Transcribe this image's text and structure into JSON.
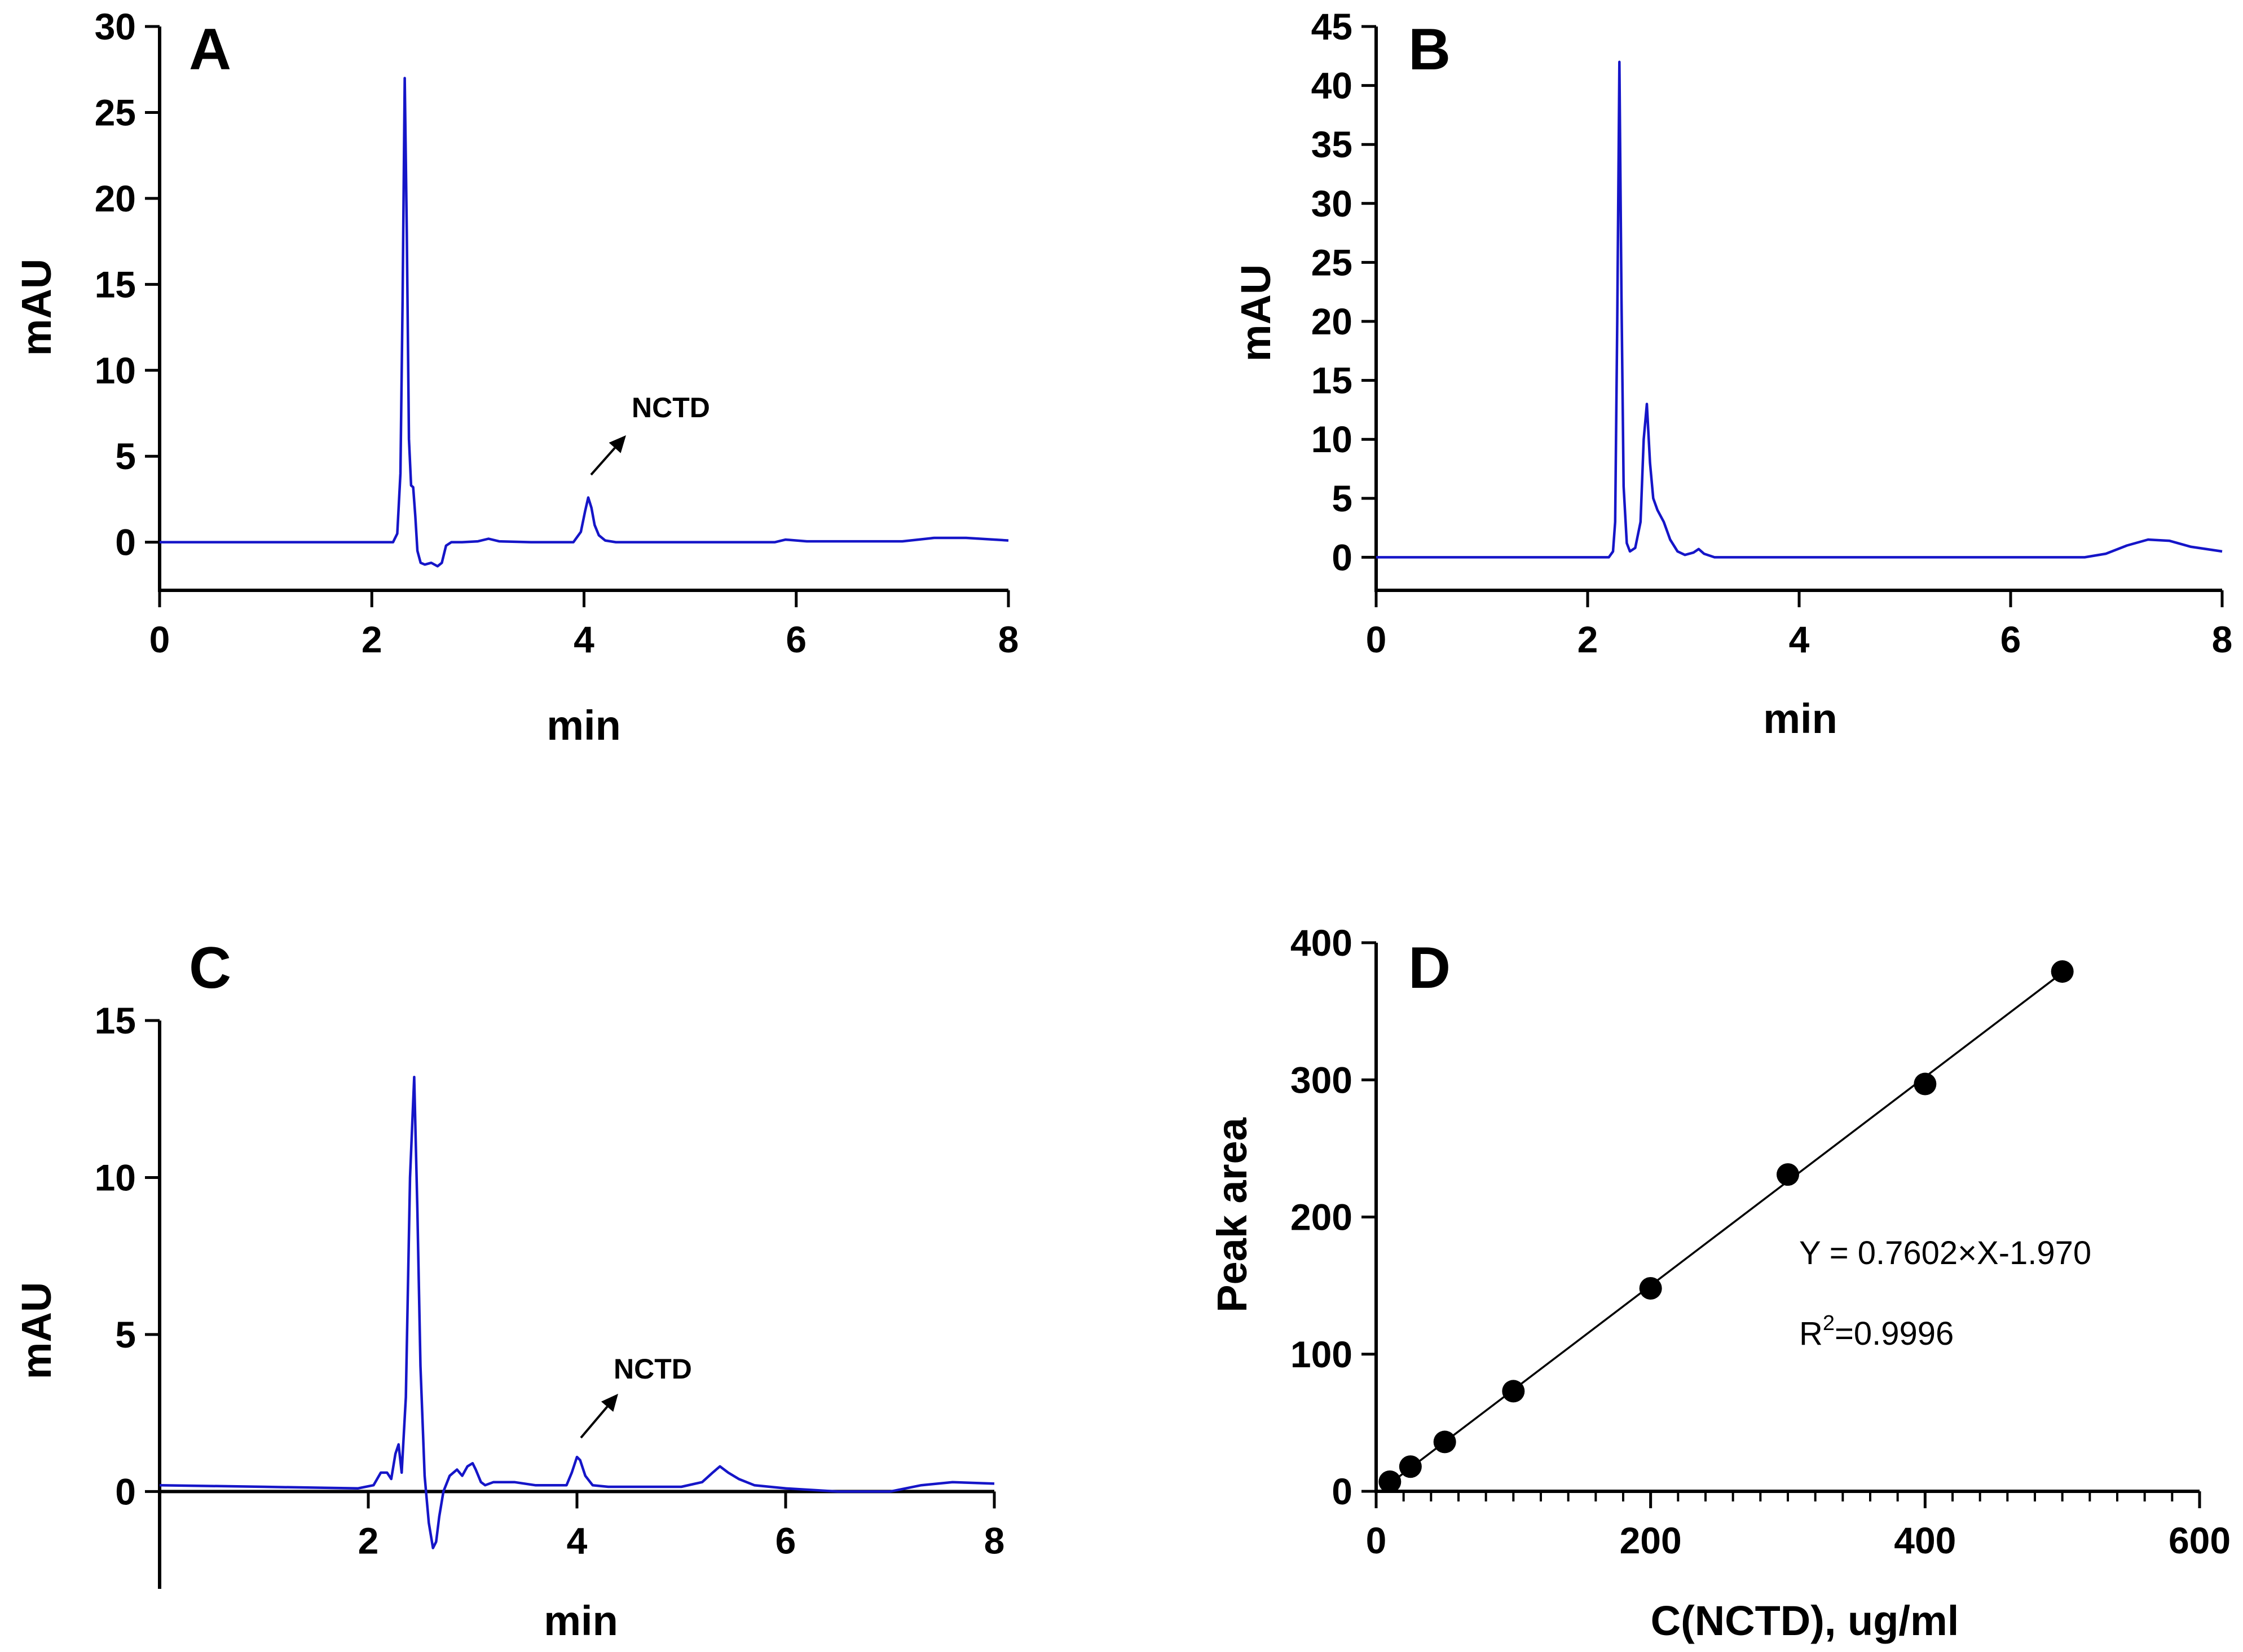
{
  "chart_data": [
    {
      "id": "A",
      "type": "line",
      "panel_label": "A",
      "xlabel": "min",
      "ylabel": "mAU",
      "xlim": [
        0,
        8
      ],
      "ylim": [
        -2.8,
        30
      ],
      "xticks": [
        0,
        2,
        4,
        6,
        8
      ],
      "yticks": [
        0,
        5,
        10,
        15,
        20,
        25,
        30
      ],
      "line_color": "#1515c8",
      "annotation": {
        "text": "NCTD",
        "x": 4.05,
        "y": 2.6
      },
      "series": [
        {
          "name": "chromatogram",
          "x": [
            0,
            1.0,
            2.0,
            2.2,
            2.24,
            2.27,
            2.29,
            2.31,
            2.33,
            2.35,
            2.37,
            2.39,
            2.41,
            2.43,
            2.46,
            2.5,
            2.56,
            2.62,
            2.66,
            2.7,
            2.75,
            2.85,
            3.0,
            3.1,
            3.2,
            3.5,
            3.9,
            3.97,
            4.01,
            4.04,
            4.07,
            4.1,
            4.14,
            4.2,
            4.3,
            5.0,
            5.8,
            5.9,
            6.1,
            7.0,
            7.3,
            7.6,
            8.0
          ],
          "y": [
            0,
            0,
            0,
            0,
            0.5,
            4,
            14,
            27,
            18,
            6,
            3.3,
            3.2,
            1.5,
            -0.5,
            -1.2,
            -1.3,
            -1.2,
            -1.4,
            -1.2,
            -0.2,
            0,
            0,
            0.05,
            0.2,
            0.05,
            0,
            0,
            0.6,
            1.8,
            2.6,
            2.0,
            1.0,
            0.4,
            0.1,
            0,
            0,
            0,
            0.15,
            0.05,
            0.05,
            0.25,
            0.25,
            0.1
          ]
        }
      ]
    },
    {
      "id": "B",
      "type": "line",
      "panel_label": "B",
      "xlabel": "min",
      "ylabel": "mAU",
      "xlim": [
        0,
        8
      ],
      "ylim": [
        -2.8,
        45
      ],
      "xticks": [
        0,
        2,
        4,
        6,
        8
      ],
      "yticks": [
        0,
        5,
        10,
        15,
        20,
        25,
        30,
        35,
        40,
        45
      ],
      "line_color": "#1515c8",
      "series": [
        {
          "name": "chromatogram",
          "x": [
            0,
            1.0,
            2.0,
            2.2,
            2.24,
            2.26,
            2.28,
            2.3,
            2.32,
            2.34,
            2.37,
            2.4,
            2.45,
            2.5,
            2.53,
            2.56,
            2.59,
            2.62,
            2.66,
            2.72,
            2.78,
            2.85,
            2.92,
            3.0,
            3.05,
            3.1,
            3.2,
            3.5,
            4.0,
            5.0,
            6.0,
            6.7,
            6.9,
            7.1,
            7.3,
            7.5,
            7.7,
            8.0
          ],
          "y": [
            0,
            0,
            0,
            0,
            0.5,
            3,
            20,
            42,
            22,
            6,
            1.2,
            0.5,
            0.8,
            3,
            10,
            13,
            8,
            5,
            4,
            3,
            1.5,
            0.5,
            0.2,
            0.4,
            0.7,
            0.3,
            0,
            0,
            0,
            0,
            0,
            0,
            0.3,
            1.0,
            1.5,
            1.4,
            0.9,
            0.5
          ]
        }
      ]
    },
    {
      "id": "C",
      "type": "line",
      "panel_label": "C",
      "xlabel": "min",
      "ylabel": "mAU",
      "xlim": [
        0,
        8
      ],
      "ylim": [
        -3.1,
        15
      ],
      "xticks": [
        2,
        4,
        6,
        8
      ],
      "yticks": [
        0,
        5,
        10,
        15
      ],
      "line_color": "#1515c8",
      "annotation": {
        "text": "NCTD",
        "x": 4.0,
        "y": 1.1
      },
      "series": [
        {
          "name": "chromatogram",
          "x": [
            0,
            1.0,
            1.9,
            2.05,
            2.12,
            2.18,
            2.22,
            2.26,
            2.29,
            2.32,
            2.36,
            2.4,
            2.44,
            2.47,
            2.5,
            2.54,
            2.58,
            2.62,
            2.65,
            2.68,
            2.72,
            2.78,
            2.85,
            2.9,
            2.95,
            3.0,
            3.03,
            3.08,
            3.12,
            3.2,
            3.4,
            3.6,
            3.9,
            3.95,
            4.0,
            4.03,
            4.08,
            4.15,
            4.3,
            5.0,
            5.2,
            5.3,
            5.37,
            5.45,
            5.55,
            5.7,
            6.0,
            6.5,
            7.0,
            7.3,
            7.6,
            8.0
          ],
          "y": [
            0.2,
            0.15,
            0.1,
            0.2,
            0.6,
            0.6,
            0.4,
            1.2,
            1.5,
            0.6,
            3,
            10,
            13.2,
            9,
            4,
            0.5,
            -1,
            -1.8,
            -1.6,
            -0.8,
            0,
            0.5,
            0.7,
            0.5,
            0.8,
            0.9,
            0.7,
            0.3,
            0.2,
            0.3,
            0.3,
            0.2,
            0.2,
            0.6,
            1.1,
            1.0,
            0.5,
            0.2,
            0.15,
            0.15,
            0.3,
            0.6,
            0.8,
            0.6,
            0.4,
            0.2,
            0.1,
            0,
            0,
            0.2,
            0.3,
            0.25
          ]
        }
      ]
    },
    {
      "id": "D",
      "type": "scatter",
      "panel_label": "D",
      "xlabel": "C(NCTD), ug/ml",
      "ylabel": "Peak area",
      "xlim": [
        0,
        600
      ],
      "ylim": [
        0,
        400
      ],
      "xticks": [
        0,
        200,
        400,
        600
      ],
      "yticks": [
        0,
        100,
        200,
        300,
        400
      ],
      "x_minor_step": 20,
      "points": {
        "x": [
          10,
          25,
          50,
          100,
          200,
          300,
          400,
          500
        ],
        "y": [
          7,
          18,
          36,
          73,
          148,
          231,
          297,
          379
        ]
      },
      "fit": {
        "slope": 0.7602,
        "intercept": -1.97,
        "x_range": [
          10,
          500
        ]
      },
      "equation_text": "Y = 0.7602×X-1.970",
      "r2_prefix": "R",
      "r2_superscript": "2",
      "r2_value_text": "=0.9996"
    }
  ]
}
